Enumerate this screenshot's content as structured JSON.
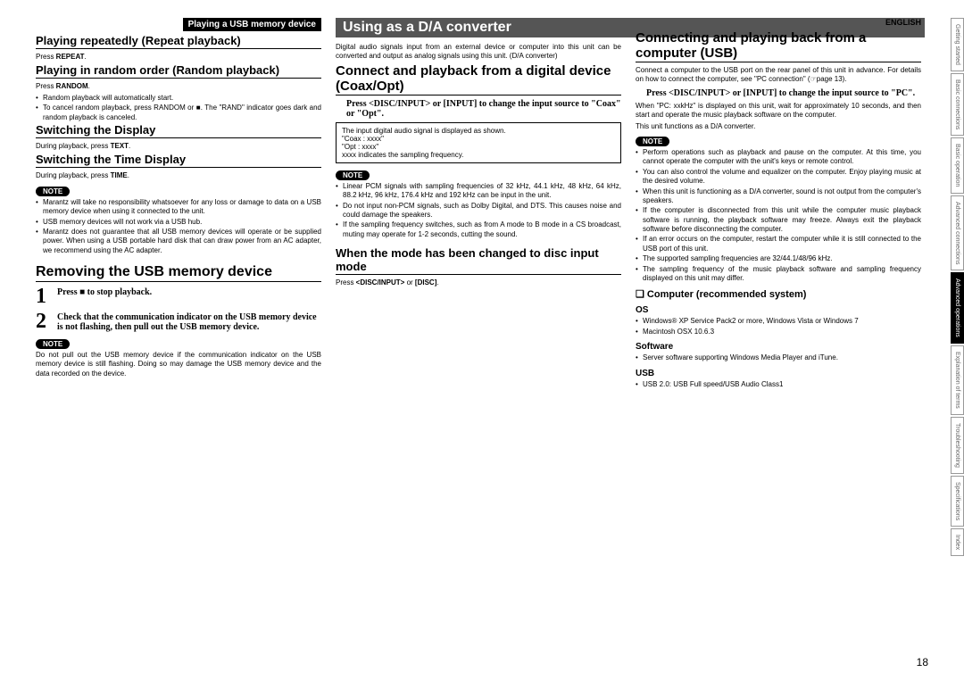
{
  "lang": "ENGLISH",
  "pageNum": "18",
  "sideTabs": [
    {
      "label": "Getting started",
      "active": false
    },
    {
      "label": "Basic connections",
      "active": false
    },
    {
      "label": "Basic operation",
      "active": false
    },
    {
      "label": "Advanced connections",
      "active": false
    },
    {
      "label": "Advanced operations",
      "active": true
    },
    {
      "label": "Explanation of terms",
      "active": false
    },
    {
      "label": "Troubleshooting",
      "active": false
    },
    {
      "label": "Specifications",
      "active": false
    },
    {
      "label": "Index",
      "active": false
    }
  ],
  "col1": {
    "topBar": "Playing a USB memory device",
    "h_repeat": "Playing repeatedly (Repeat playback)",
    "p_repeat": "Press REPEAT.",
    "h_random": "Playing in random order (Random playback)",
    "p_random": "Press RANDOM.",
    "random_list": [
      "Random playback will automatically start.",
      "To cancel random playback, press RANDOM or ■. The \"RAND\" indicator goes dark and random playback is canceled."
    ],
    "h_disp": "Switching the Display",
    "p_disp": "During playback, press TEXT.",
    "h_time": "Switching the Time Display",
    "p_time": "During playback, press TIME.",
    "note1": "NOTE",
    "note1_list": [
      "Marantz will take no responsibility whatsoever for any loss or damage to data on a USB memory device when using it connected to the unit.",
      "USB memory devices will not work via a USB hub.",
      "Marantz does not guarantee that all USB memory devices will operate or be supplied power. When using a USB portable hard disk that can draw power from an AC adapter, we recommend using the AC adapter."
    ],
    "h_remove": "Removing the USB memory device",
    "step1": "Press ■ to stop playback.",
    "step2": "Check that the communication indicator on the USB memory device is not flashing, then pull out the USB memory device.",
    "note2": "NOTE",
    "note2_p": "Do not pull out the USB memory device if the communication indicator on the USB memory device is still flashing. Doing so may damage the USB memory device and the data recorded on the device."
  },
  "col2": {
    "bar": "Using as a D/A converter",
    "intro": "Digital audio signals input from an external device or computer into this unit can be converted and output as analog signals using this unit. (D/A converter)",
    "h_coax": "Connect and playback from a digital device (Coax/Opt)",
    "coax_bold": "Press <DISC/INPUT> or [INPUT] to change the input source to \"Coax\" or \"Opt\".",
    "box": [
      "The input digital audio signal is displayed as shown.",
      "   \"Coax : xxxx\"",
      "   \"Opt : xxxx\"",
      "   xxxx indicates the sampling frequency."
    ],
    "note": "NOTE",
    "note_list": [
      "Linear PCM signals with sampling frequencies of 32 kHz, 44.1 kHz, 48 kHz, 64 kHz, 88.2 kHz, 96 kHz, 176.4 kHz and 192 kHz can be input in the unit.",
      "Do not input non-PCM signals, such as Dolby Digital, and DTS. This causes noise and could damage the speakers.",
      "If the sampling frequency switches, such as from A mode to B mode in a CS broadcast, muting may operate for 1-2 seconds, cutting the sound."
    ],
    "h_disc": "When the mode has been changed to disc input mode",
    "p_disc": "Press <DISC/INPUT> or [DISC]."
  },
  "col3": {
    "h_usb": "Connecting and playing back from a computer (USB)",
    "p_usb": "Connect a computer to the USB port on the rear panel of this unit in advance. For details on how to connect the computer, see \"PC connection\" (☞page 13).",
    "bold1": "Press <DISC/INPUT> or [INPUT] to change the input source to \"PC\".",
    "p_pc": "When \"PC: xxkHz\" is displayed on this unit, wait for approximately 10 seconds, and then start and operate the music playback software on the computer.",
    "p_pc2": "This unit functions as a D/A converter.",
    "note": "NOTE",
    "note_list": [
      "Perform operations such as playback and pause on the computer. At this time, you cannot operate the computer with the unit's keys or remote control.",
      "You can also control the volume and equalizer on the computer. Enjoy playing music at the desired volume.",
      "When this unit is functioning as a D/A converter, sound is not output from the computer's speakers.",
      "If the computer is disconnected from this unit while the computer music playback software is running, the playback software may freeze. Always exit the playback software before disconnecting the computer.",
      "If an error occurs on the computer, restart the computer while it is still connected to the USB port of this unit.",
      "The supported sampling frequencies are 32/44.1/48/96 kHz.",
      "The sampling frequency of the music playback software and sampling frequency displayed on this unit may differ."
    ],
    "h_os": "❑ Computer (recommended system)",
    "h_os2": "OS",
    "os_list": [
      "Windows® XP Service Pack2 or more, Windows Vista or Windows 7",
      "Macintosh OSX 10.6.3"
    ],
    "h_sw": "Software",
    "sw_list": [
      "Server software supporting Windows Media Player and iTune."
    ],
    "h_usb2": "USB",
    "usb_list": [
      "USB 2.0: USB Full speed/USB Audio Class1"
    ]
  }
}
